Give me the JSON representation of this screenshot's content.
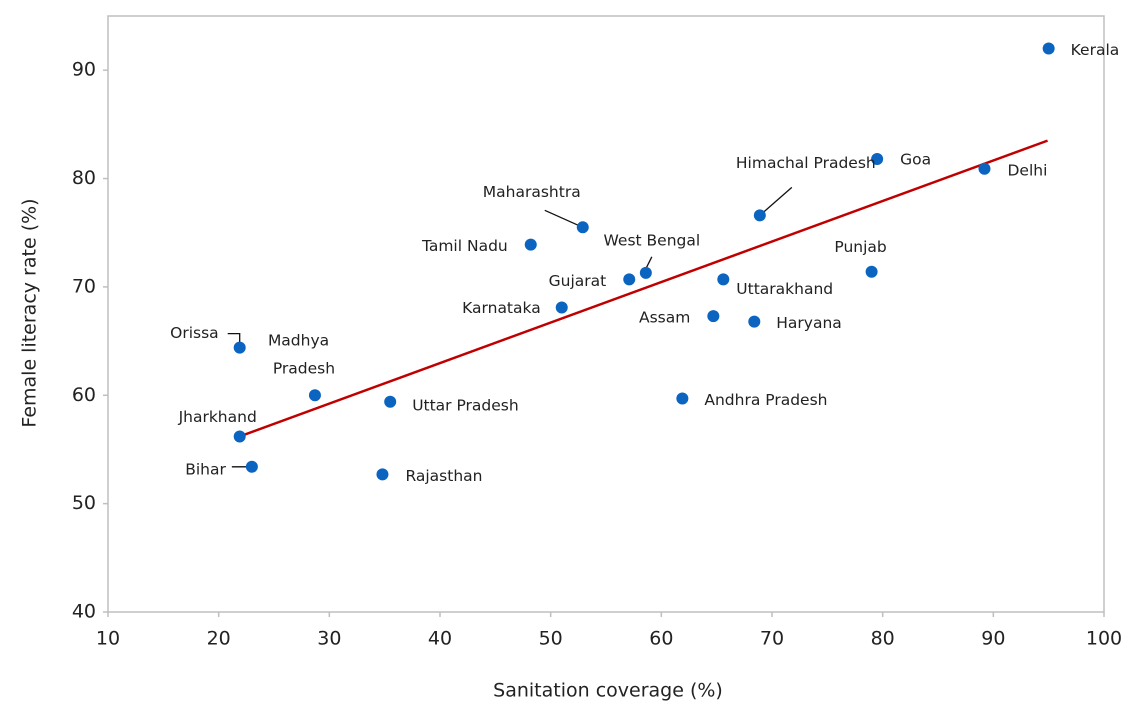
{
  "chart_data": {
    "type": "scatter",
    "xlabel": "Sanitation coverage (%)",
    "ylabel": "Female literacy rate (%)",
    "xlim": [
      10,
      100
    ],
    "xticks": [
      10,
      20,
      30,
      40,
      50,
      60,
      70,
      80,
      90,
      100
    ],
    "ylim": [
      40,
      95
    ],
    "yticks": [
      40,
      50,
      60,
      70,
      80,
      90
    ],
    "color": "#0a64c0",
    "points": [
      {
        "label": "Kerala",
        "x": 95.0,
        "y": 92.0
      },
      {
        "label": "Goa",
        "x": 79.5,
        "y": 81.8
      },
      {
        "label": "Delhi",
        "x": 89.2,
        "y": 80.9
      },
      {
        "label": "Himachal Pradesh",
        "x": 68.9,
        "y": 76.6
      },
      {
        "label": "Maharashtra",
        "x": 52.9,
        "y": 75.5
      },
      {
        "label": "Tamil Nadu",
        "x": 48.2,
        "y": 73.9
      },
      {
        "label": "West Bengal",
        "x": 58.6,
        "y": 71.3
      },
      {
        "label": "Gujarat",
        "x": 57.1,
        "y": 70.7
      },
      {
        "label": "Uttarakhand",
        "x": 65.6,
        "y": 70.7
      },
      {
        "label": "Punjab",
        "x": 79.0,
        "y": 71.4
      },
      {
        "label": "Karnataka",
        "x": 51.0,
        "y": 68.1
      },
      {
        "label": "Assam",
        "x": 64.7,
        "y": 67.3
      },
      {
        "label": "Haryana",
        "x": 68.4,
        "y": 66.8
      },
      {
        "label": "Orissa",
        "x": 21.9,
        "y": 64.4
      },
      {
        "label": "Madhya Pradesh",
        "x": 28.7,
        "y": 60.0
      },
      {
        "label": "Uttar Pradesh",
        "x": 35.5,
        "y": 59.4
      },
      {
        "label": "Andhra Pradesh",
        "x": 61.9,
        "y": 59.7
      },
      {
        "label": "Jharkhand",
        "x": 21.9,
        "y": 56.2
      },
      {
        "label": "Bihar",
        "x": 23.0,
        "y": 53.4
      },
      {
        "label": "Rajasthan",
        "x": 34.8,
        "y": 52.7
      }
    ],
    "trendline": {
      "x": [
        21.9,
        94.9
      ],
      "y": [
        56.2,
        83.5
      ],
      "color": "#c00000"
    }
  }
}
